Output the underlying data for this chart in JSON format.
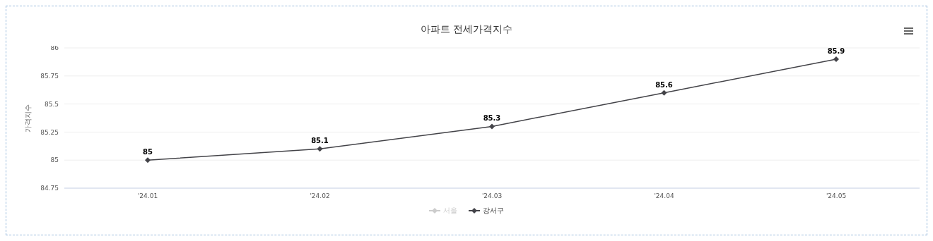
{
  "chart_data": {
    "type": "line",
    "title": "아파트 전세가격지수",
    "ylabel": "가격지수",
    "categories": [
      "'24.01",
      "'24.02",
      "'24.03",
      "'24.04",
      "'24.05"
    ],
    "series": [
      {
        "name": "서울",
        "color": "#cccccc",
        "values": [
          null,
          null,
          null,
          null,
          null
        ]
      },
      {
        "name": "강서구",
        "color": "#434348",
        "values": [
          85,
          85.1,
          85.3,
          85.6,
          85.9
        ]
      }
    ],
    "ylim": [
      84.75,
      86
    ],
    "yticks": [
      84.75,
      85,
      85.25,
      85.5,
      85.75,
      86
    ],
    "grid": "y",
    "legend": "bottom",
    "marker": "diamond",
    "line_style": "solid",
    "data_labels": true
  }
}
